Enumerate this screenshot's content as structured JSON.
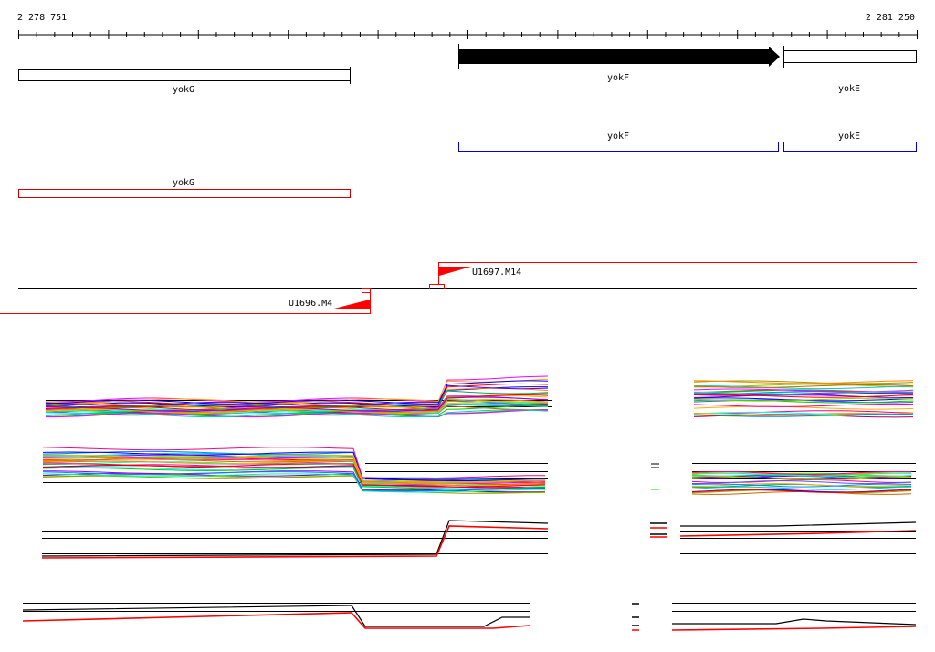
{
  "coordinates": {
    "start": "2 278 751",
    "end": "2 281 250"
  },
  "colors": {
    "axis": "#000000",
    "strand_plus_outline": "#0000cc",
    "strand_minus_outline": "#cc0000",
    "transcript": "#ff0000",
    "profile_black": "#000000",
    "profile_red": "#ff0000"
  },
  "genes": [
    {
      "name": "yokG",
      "track": "annotation",
      "style": "open",
      "from": 0,
      "to": 0.37
    },
    {
      "name": "yokF",
      "track": "annotation",
      "style": "filled-arrow",
      "from": 0.49,
      "to": 0.85
    },
    {
      "name": "yokE",
      "track": "annotation",
      "style": "open-bracket",
      "from": 0.855,
      "to": 1.0
    }
  ],
  "strand_boxes": [
    {
      "name": "yokF",
      "strand": "plus",
      "icon": "box-outline-blue"
    },
    {
      "name": "yokE",
      "strand": "plus",
      "icon": "box-outline-blue"
    },
    {
      "name": "yokG",
      "strand": "minus",
      "icon": "box-outline-red"
    }
  ],
  "transcripts": [
    {
      "name": "U1697.M14",
      "strand": "plus",
      "icon": "red-flag-right"
    },
    {
      "name": "U1696.M4",
      "strand": "minus",
      "icon": "red-flag-left"
    }
  ],
  "profile_tracks": [
    {
      "id": "track-1",
      "style": "multicolor"
    },
    {
      "id": "track-2",
      "style": "multicolor"
    },
    {
      "id": "track-3",
      "style": "black-red"
    },
    {
      "id": "track-4",
      "style": "black-red"
    }
  ]
}
